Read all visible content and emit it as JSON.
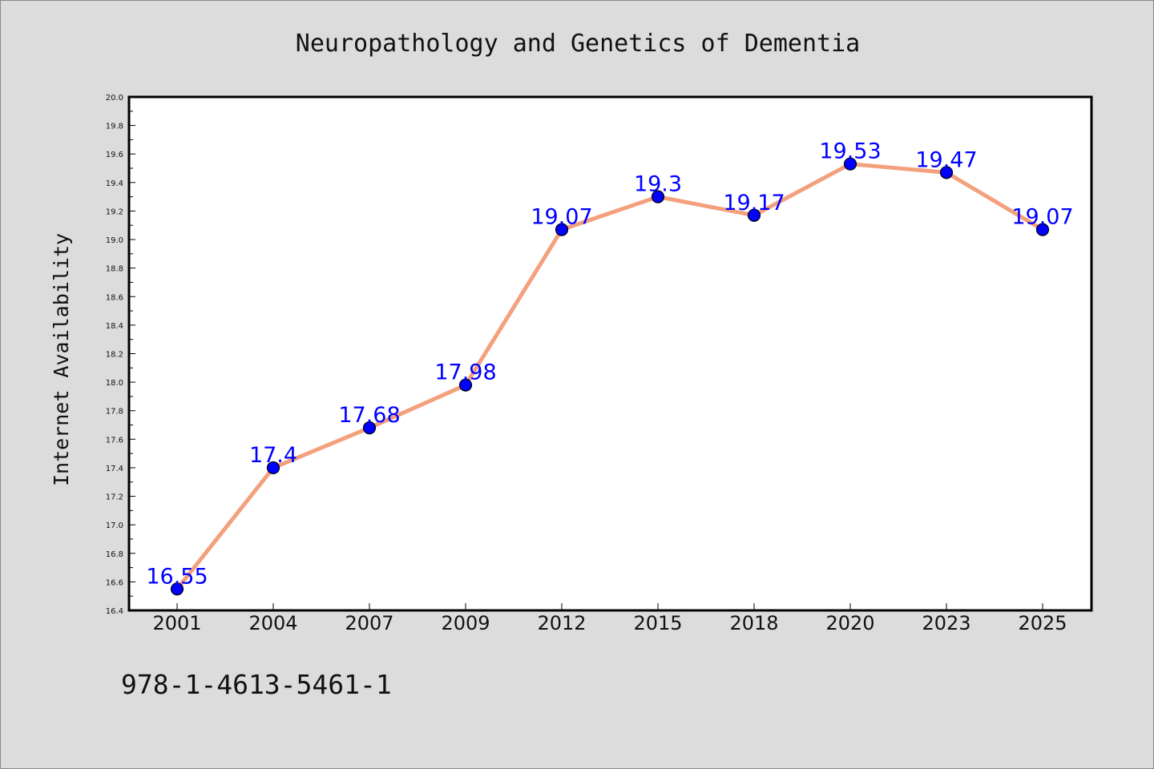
{
  "chart_data": {
    "type": "line",
    "title": "Neuropathology and Genetics of Dementia",
    "xlabel": "",
    "ylabel": "Internet Availability",
    "categories": [
      "2001",
      "2004",
      "2007",
      "2009",
      "2012",
      "2015",
      "2018",
      "2020",
      "2023",
      "2025"
    ],
    "series": [
      {
        "values": [
          16.55,
          17.4,
          17.68,
          17.98,
          19.07,
          19.3,
          19.17,
          19.53,
          19.47,
          19.07
        ],
        "labels": [
          "16.55",
          "17.4",
          "17.68",
          "17.98",
          "19.07",
          "19.3",
          "19.17",
          "19.53",
          "19.47",
          "19.07"
        ],
        "line_color": "#f4a07d",
        "marker_color": "#0000ff",
        "label_color": "#0000ff"
      }
    ],
    "ylim": [
      16.4,
      20.0
    ],
    "y_ticks": [
      "16.4",
      "16.6",
      "16.8",
      "17.0",
      "17.2",
      "17.4",
      "17.6",
      "17.8",
      "18.0",
      "18.2",
      "18.4",
      "18.6",
      "18.8",
      "19.0",
      "19.2",
      "19.4",
      "19.6",
      "19.8",
      "20.0"
    ],
    "grid": false,
    "legend": "none"
  },
  "footer": {
    "code": "978-1-4613-5461-1"
  },
  "colors": {
    "background": "#dcdcdc",
    "plot_background": "#ffffff",
    "axis": "#000000"
  }
}
